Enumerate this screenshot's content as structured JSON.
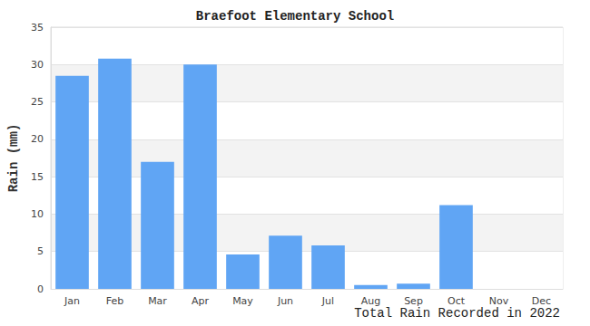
{
  "chart_data": {
    "type": "bar",
    "title": "Braefoot Elementary School",
    "x_label": "Total Rain Recorded in 2022",
    "y_label": "Rain (mm)",
    "categories": [
      "Jan",
      "Feb",
      "Mar",
      "Apr",
      "May",
      "Jun",
      "Jul",
      "Aug",
      "Sep",
      "Oct",
      "Nov",
      "Dec"
    ],
    "values": [
      28.5,
      30.8,
      17,
      30,
      4.6,
      7.1,
      5.8,
      0.5,
      0.7,
      11.2,
      0,
      0
    ],
    "color": "#60a5f4",
    "ylim": [
      0,
      35
    ],
    "yticks": [
      0,
      5,
      10,
      15,
      20,
      25,
      30,
      35
    ],
    "grid": true
  }
}
